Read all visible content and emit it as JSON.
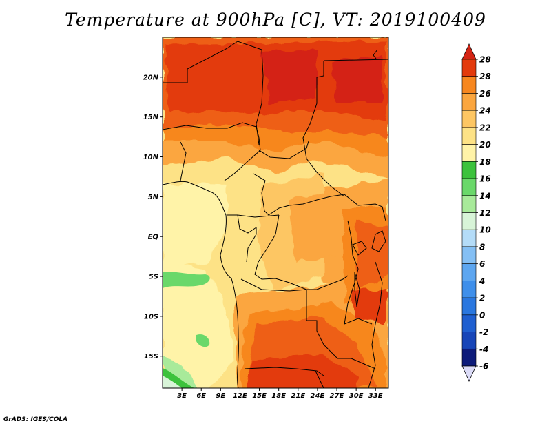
{
  "title": "Temperature at 900hPa [C], VT: 2019100409",
  "credit": "GrADS: IGES/COLA",
  "map": {
    "lat_range": [
      -19,
      25
    ],
    "lon_range": [
      0,
      35
    ],
    "lat_ticks": [
      {
        "value": 20,
        "label": "20N"
      },
      {
        "value": 15,
        "label": "15N"
      },
      {
        "value": 10,
        "label": "10N"
      },
      {
        "value": 5,
        "label": "5N"
      },
      {
        "value": 0,
        "label": "EQ"
      },
      {
        "value": -5,
        "label": "5S"
      },
      {
        "value": -10,
        "label": "10S"
      },
      {
        "value": -15,
        "label": "15S"
      }
    ],
    "lon_ticks": [
      {
        "value": 3,
        "label": "3E"
      },
      {
        "value": 6,
        "label": "6E"
      },
      {
        "value": 9,
        "label": "9E"
      },
      {
        "value": 12,
        "label": "12E"
      },
      {
        "value": 15,
        "label": "15E"
      },
      {
        "value": 18,
        "label": "18E"
      },
      {
        "value": 21,
        "label": "21E"
      },
      {
        "value": 24,
        "label": "24E"
      },
      {
        "value": 27,
        "label": "27E"
      },
      {
        "value": 30,
        "label": "30E"
      },
      {
        "value": 33,
        "label": "33E"
      }
    ]
  },
  "colorbar": {
    "min_label": "-6",
    "max_label": "28",
    "levels": [
      {
        "label": "-4",
        "color": "#0d1b7a"
      },
      {
        "label": "-2",
        "color": "#1745b8"
      },
      {
        "label": "0",
        "color": "#1f5fd0"
      },
      {
        "label": "2",
        "color": "#2a77df"
      },
      {
        "label": "4",
        "color": "#3f8fea"
      },
      {
        "label": "6",
        "color": "#5da6f0"
      },
      {
        "label": "8",
        "color": "#84bff4"
      },
      {
        "label": "10",
        "color": "#b4dcf8"
      },
      {
        "label": "12",
        "color": "#d8f4d8"
      },
      {
        "label": "14",
        "color": "#a8ea9a"
      },
      {
        "label": "16",
        "color": "#6ad86a"
      },
      {
        "label": "18",
        "color": "#3cc23c"
      },
      {
        "label": "20",
        "color": "#fff3a8"
      },
      {
        "label": "22",
        "color": "#fde286"
      },
      {
        "label": "24",
        "color": "#fdc663"
      },
      {
        "label": "26",
        "color": "#fba63f"
      },
      {
        "label": "28",
        "color": "#f7871f"
      }
    ],
    "bottom_color": "#dcdcf8",
    "top_colors": [
      "#ee5e14",
      "#e33a0c",
      "#d42414"
    ]
  }
}
